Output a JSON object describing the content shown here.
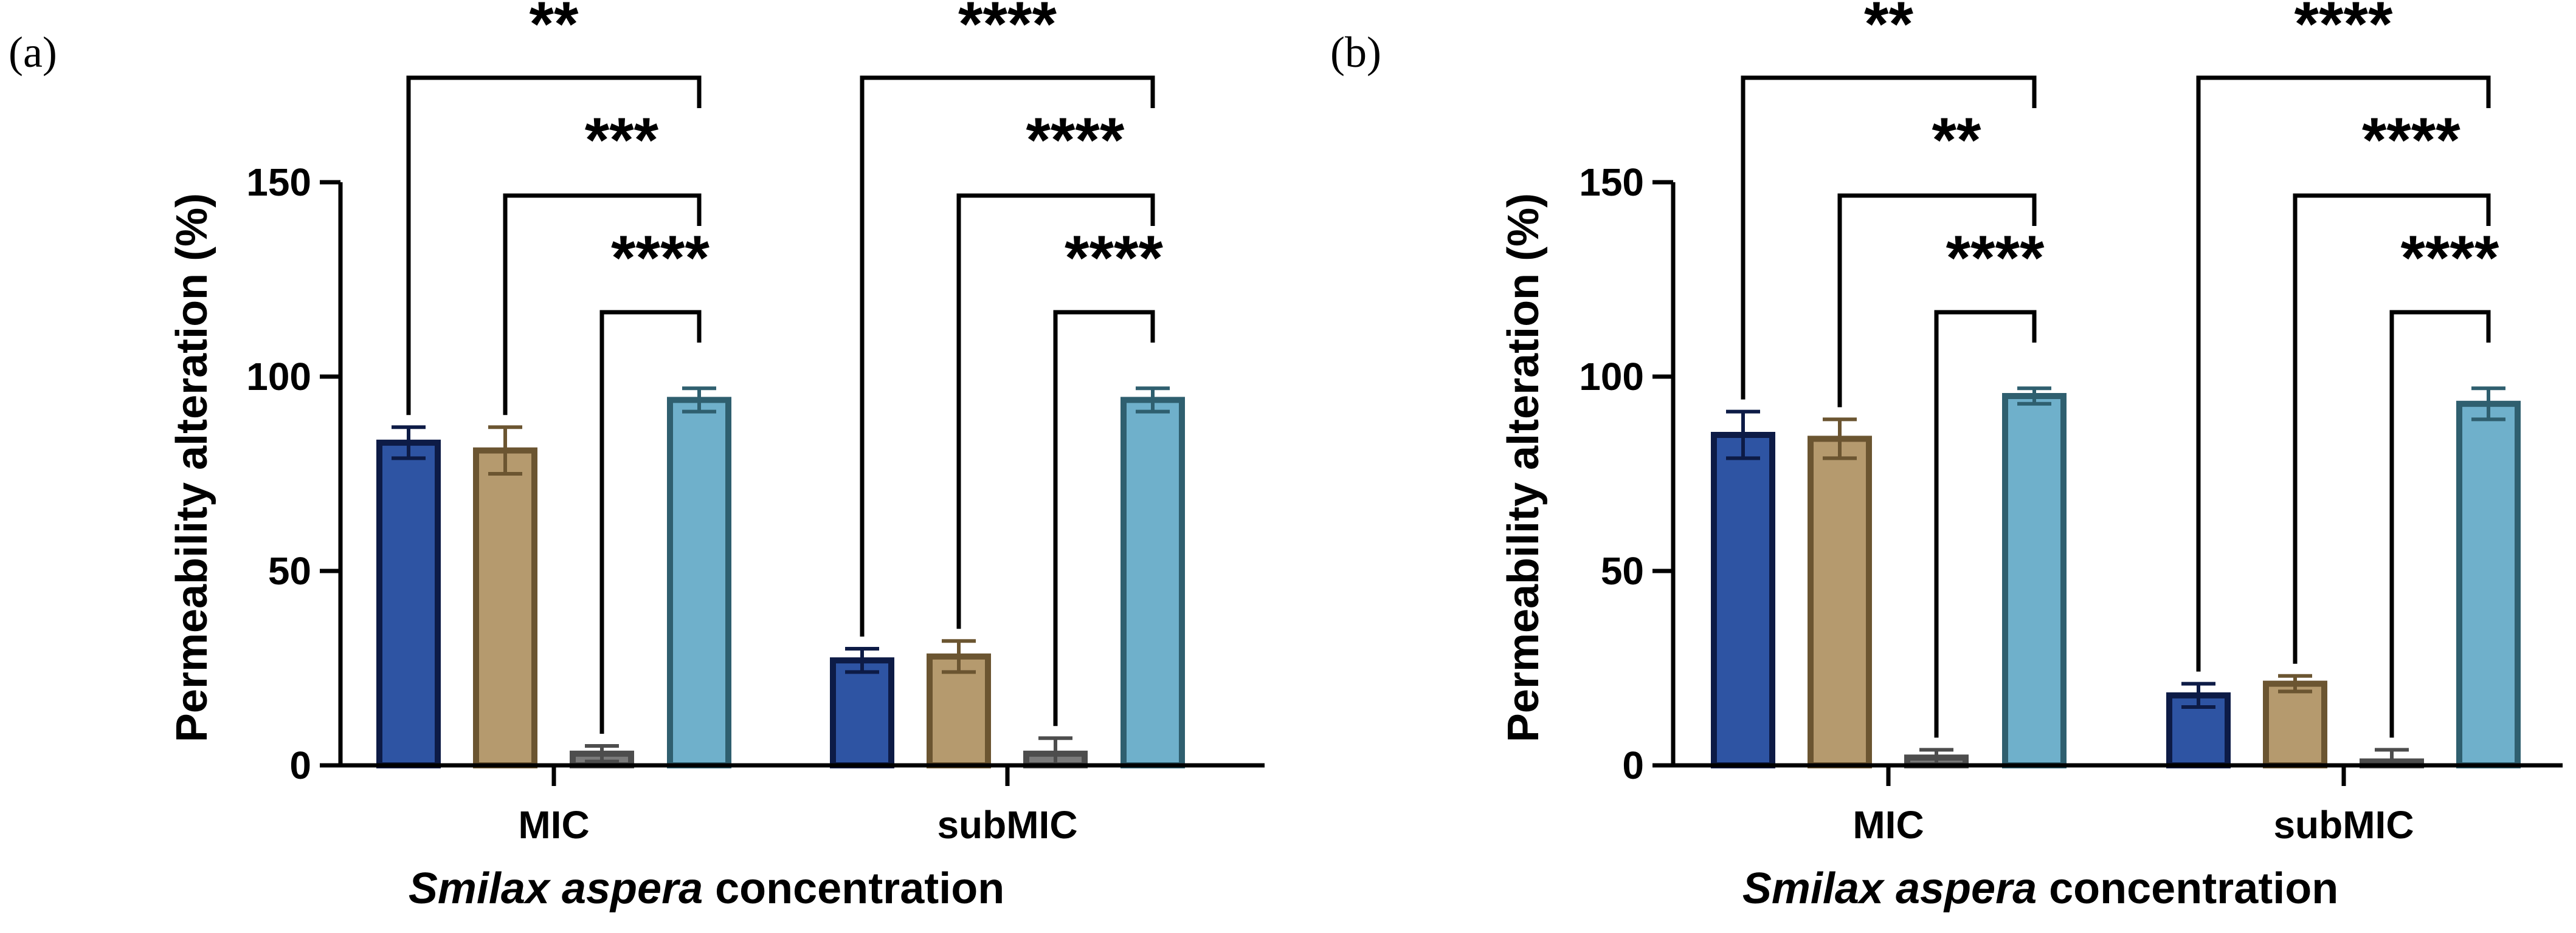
{
  "panels": [
    {
      "label": "(a)",
      "chart_data": {
        "type": "bar",
        "title": "",
        "xlabel": "Smilax aspera concentration",
        "xlabel_italic": "Smilax aspera",
        "xlabel_rest": " concentration",
        "ylabel": "Permeability alteration (%)",
        "ylim": [
          0,
          150
        ],
        "yticks": [
          "0",
          "50",
          "100",
          "150"
        ],
        "categories": [
          "MIC",
          "subMIC"
        ],
        "series": [
          {
            "name": "series-1",
            "fill": "#2e54a3",
            "stroke": "#0d1b46",
            "values": [
              83,
              27
            ],
            "errors": [
              4,
              3
            ]
          },
          {
            "name": "series-2",
            "fill": "#b59a6e",
            "stroke": "#6b5531",
            "values": [
              81,
              28
            ],
            "errors": [
              6,
              4
            ]
          },
          {
            "name": "series-3",
            "fill": "#7b7b7b",
            "stroke": "#4d4d4d",
            "values": [
              3,
              3
            ],
            "errors": [
              2,
              4
            ]
          },
          {
            "name": "series-4",
            "fill": "#6fb0cb",
            "stroke": "#2f5f6f",
            "values": [
              94,
              94
            ],
            "errors": [
              3,
              3
            ]
          }
        ],
        "significance": [
          {
            "category": 0,
            "from": 0,
            "to": 3,
            "level": 1,
            "text": "**"
          },
          {
            "category": 0,
            "from": 1,
            "to": 3,
            "level": 2,
            "text": "***"
          },
          {
            "category": 0,
            "from": 2,
            "to": 3,
            "level": 3,
            "text": "****"
          },
          {
            "category": 1,
            "from": 0,
            "to": 3,
            "level": 1,
            "text": "****"
          },
          {
            "category": 1,
            "from": 1,
            "to": 3,
            "level": 2,
            "text": "****"
          },
          {
            "category": 1,
            "from": 2,
            "to": 3,
            "level": 3,
            "text": "****"
          }
        ]
      }
    },
    {
      "label": "(b)",
      "chart_data": {
        "type": "bar",
        "title": "",
        "xlabel": "Smilax aspera concentration",
        "xlabel_italic": "Smilax aspera",
        "xlabel_rest": " concentration",
        "ylabel": "Permeability alteration (%)",
        "ylim": [
          0,
          150
        ],
        "yticks": [
          "0",
          "50",
          "100",
          "150"
        ],
        "categories": [
          "MIC",
          "subMIC"
        ],
        "series": [
          {
            "name": "series-1",
            "fill": "#2e54a3",
            "stroke": "#0d1b46",
            "values": [
              85,
              18
            ],
            "errors": [
              6,
              3
            ]
          },
          {
            "name": "series-2",
            "fill": "#b59a6e",
            "stroke": "#6b5531",
            "values": [
              84,
              21
            ],
            "errors": [
              5,
              2
            ]
          },
          {
            "name": "series-3",
            "fill": "#7b7b7b",
            "stroke": "#4d4d4d",
            "values": [
              2,
              1
            ],
            "errors": [
              2,
              3
            ]
          },
          {
            "name": "series-4",
            "fill": "#6fb0cb",
            "stroke": "#2f5f6f",
            "values": [
              95,
              93
            ],
            "errors": [
              2,
              4
            ]
          }
        ],
        "significance": [
          {
            "category": 0,
            "from": 0,
            "to": 3,
            "level": 1,
            "text": "**"
          },
          {
            "category": 0,
            "from": 1,
            "to": 3,
            "level": 2,
            "text": "**"
          },
          {
            "category": 0,
            "from": 2,
            "to": 3,
            "level": 3,
            "text": "****"
          },
          {
            "category": 1,
            "from": 0,
            "to": 3,
            "level": 1,
            "text": "****"
          },
          {
            "category": 1,
            "from": 1,
            "to": 3,
            "level": 2,
            "text": "****"
          },
          {
            "category": 1,
            "from": 2,
            "to": 3,
            "level": 3,
            "text": "****"
          }
        ]
      }
    }
  ]
}
